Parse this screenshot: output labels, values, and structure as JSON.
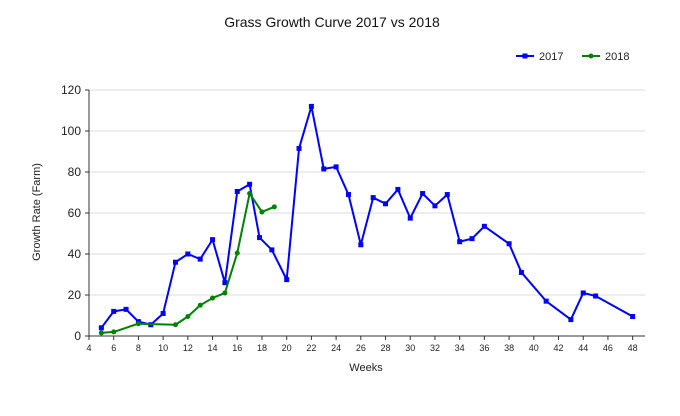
{
  "chart_data": {
    "type": "line",
    "title": "Grass Growth Curve 2017 vs 2018",
    "xlabel": "Weeks",
    "ylabel": "Growth Rate (Farm)",
    "xlim": [
      4,
      49
    ],
    "ylim": [
      0,
      120
    ],
    "x_ticks": [
      4,
      6,
      8,
      10,
      12,
      14,
      16,
      18,
      20,
      22,
      24,
      26,
      28,
      30,
      32,
      34,
      36,
      38,
      40,
      42,
      44,
      46,
      48
    ],
    "y_ticks": [
      0,
      20,
      40,
      60,
      80,
      100,
      120
    ],
    "grid": true,
    "legend_position": "top-right",
    "series": [
      {
        "name": "2017",
        "color": "#0000ff",
        "marker": "square",
        "points": [
          [
            5,
            4
          ],
          [
            6,
            12
          ],
          [
            7,
            13
          ],
          [
            8,
            7
          ],
          [
            9,
            5.5
          ],
          [
            10,
            11
          ],
          [
            11,
            36
          ],
          [
            12,
            40
          ],
          [
            13,
            37.5
          ],
          [
            14,
            47
          ],
          [
            15,
            26
          ],
          [
            16,
            70.5
          ],
          [
            17,
            74
          ],
          [
            17.8,
            48
          ],
          [
            18.8,
            42
          ],
          [
            20,
            27.5
          ],
          [
            21,
            91.5
          ],
          [
            22,
            112
          ],
          [
            23,
            81.5
          ],
          [
            24,
            82.5
          ],
          [
            25,
            69
          ],
          [
            26,
            44.5
          ],
          [
            27,
            67.5
          ],
          [
            28,
            64.5
          ],
          [
            29,
            71.5
          ],
          [
            30,
            57.5
          ],
          [
            31,
            69.5
          ],
          [
            32,
            63.5
          ],
          [
            33,
            69
          ],
          [
            34,
            46
          ],
          [
            35,
            47.5
          ],
          [
            36,
            53.5
          ],
          [
            38,
            45
          ],
          [
            39,
            31
          ],
          [
            41,
            17
          ],
          [
            43,
            8
          ],
          [
            44,
            21
          ],
          [
            45,
            19.5
          ],
          [
            48,
            9.5
          ]
        ]
      },
      {
        "name": "2018",
        "color": "#008000",
        "marker": "circle",
        "points": [
          [
            5,
            1.5
          ],
          [
            6,
            2
          ],
          [
            8,
            6
          ],
          [
            11,
            5.5
          ],
          [
            12,
            9.5
          ],
          [
            13,
            15
          ],
          [
            14,
            18.5
          ],
          [
            15,
            21
          ],
          [
            16,
            40.5
          ],
          [
            17,
            69.5
          ],
          [
            18,
            60.5
          ],
          [
            19,
            63
          ]
        ]
      }
    ]
  }
}
